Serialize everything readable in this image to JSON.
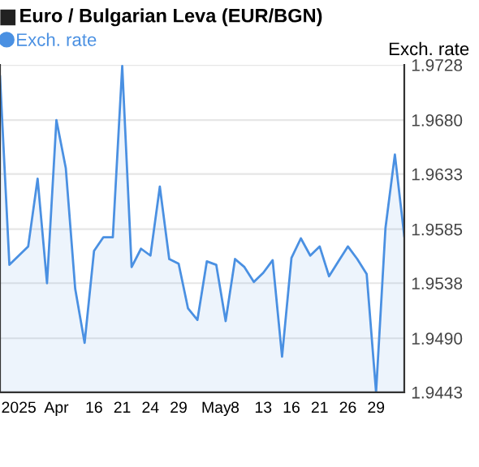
{
  "chart_data": {
    "type": "area",
    "title": "Euro / Bulgarian Leva (EUR/BGN)",
    "ylabel": "Exch. rate",
    "categories": [
      null,
      null,
      "2025",
      null,
      null,
      null,
      "Apr",
      null,
      null,
      null,
      "16",
      null,
      null,
      "21",
      null,
      null,
      "24",
      null,
      null,
      "29",
      null,
      null,
      null,
      "May",
      null,
      "8",
      null,
      null,
      "13",
      null,
      null,
      "16",
      null,
      null,
      "21",
      null,
      null,
      "26",
      null,
      null,
      "29",
      null,
      null,
      null
    ],
    "series": [
      {
        "name": "Exch. rate",
        "color": "#4a90e2",
        "values": [
          1.9718,
          1.9554,
          1.9562,
          1.957,
          1.9629,
          1.9538,
          1.968,
          1.9638,
          1.9533,
          1.9486,
          1.9566,
          1.9578,
          1.9578,
          1.9727,
          1.9552,
          1.9568,
          1.9562,
          1.9622,
          1.9559,
          1.9555,
          1.9516,
          1.9506,
          1.9557,
          1.9554,
          1.9505,
          1.9559,
          1.9552,
          1.9539,
          1.9547,
          1.9558,
          1.9474,
          1.956,
          1.9577,
          1.9562,
          1.957,
          1.9544,
          1.9557,
          1.957,
          1.9559,
          1.9546,
          1.9443,
          1.9586,
          1.965,
          1.9579
        ]
      }
    ],
    "ylim": [
      1.9443,
      1.9728
    ],
    "yticks": [
      1.9443,
      {
        "value": 1.949,
        "label": "1.9490"
      },
      1.9538,
      1.9585,
      1.9633,
      {
        "value": 1.968,
        "label": "1.9680"
      },
      1.9728
    ],
    "grid": "y",
    "legend": "top left",
    "marker": "none",
    "line_style": "solid"
  }
}
